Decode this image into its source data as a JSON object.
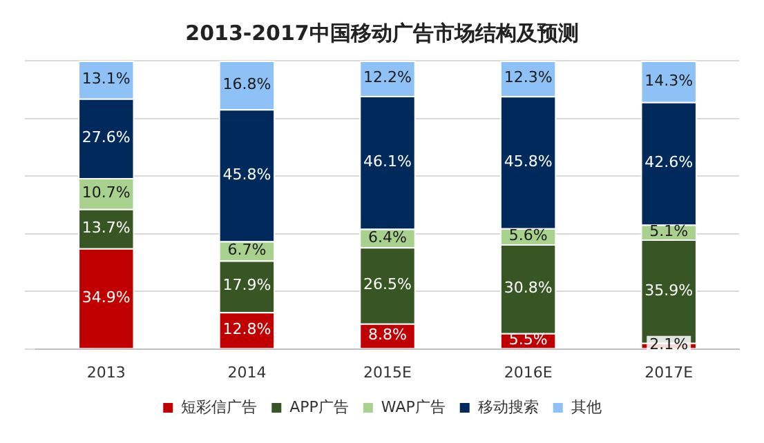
{
  "chart_data": {
    "type": "bar",
    "title": "2013-2017中国移动广告市场结构及预测",
    "stacked": true,
    "categories": [
      "2013",
      "2014",
      "2015E",
      "2016E",
      "2017E"
    ],
    "series": [
      {
        "name": "短彩信广告",
        "color": "#c00000",
        "values": [
          34.9,
          12.8,
          8.8,
          5.5,
          2.1
        ],
        "value_labels": [
          "34.9%",
          "12.8%",
          "8.8%",
          "5.5%",
          "2.1%"
        ]
      },
      {
        "name": "APP广告",
        "color": "#375623",
        "values": [
          13.7,
          17.9,
          26.5,
          30.8,
          35.9
        ],
        "value_labels": [
          "13.7%",
          "17.9%",
          "26.5%",
          "30.8%",
          "35.9%"
        ]
      },
      {
        "name": "WAP广告",
        "color": "#a9d18e",
        "values": [
          10.7,
          6.7,
          6.4,
          5.6,
          5.1
        ],
        "value_labels": [
          "10.7%",
          "6.7%",
          "6.4%",
          "5.6%",
          "5.1%"
        ]
      },
      {
        "name": "移动搜索",
        "color": "#002a5c",
        "values": [
          27.6,
          45.8,
          46.1,
          45.8,
          42.6
        ],
        "value_labels": [
          "27.6%",
          "45.8%",
          "46.1%",
          "45.8%",
          "42.6%"
        ]
      },
      {
        "name": "其他",
        "color": "#8ec1f5",
        "values": [
          13.1,
          16.8,
          12.2,
          12.3,
          14.3
        ],
        "value_labels": [
          "13.1%",
          "16.8%",
          "12.2%",
          "12.3%",
          "14.3%"
        ]
      }
    ],
    "ylim": [
      0,
      100
    ],
    "yticks": [
      {
        "value": 0,
        "label": null
      },
      {
        "value": 20,
        "label": null
      },
      {
        "value": 40,
        "label": null
      },
      {
        "value": 60,
        "label": null
      },
      {
        "value": 80,
        "label": null
      },
      {
        "value": 100,
        "label": null
      }
    ],
    "tick_labels": "x",
    "grid": "y",
    "legend": "bottom"
  }
}
